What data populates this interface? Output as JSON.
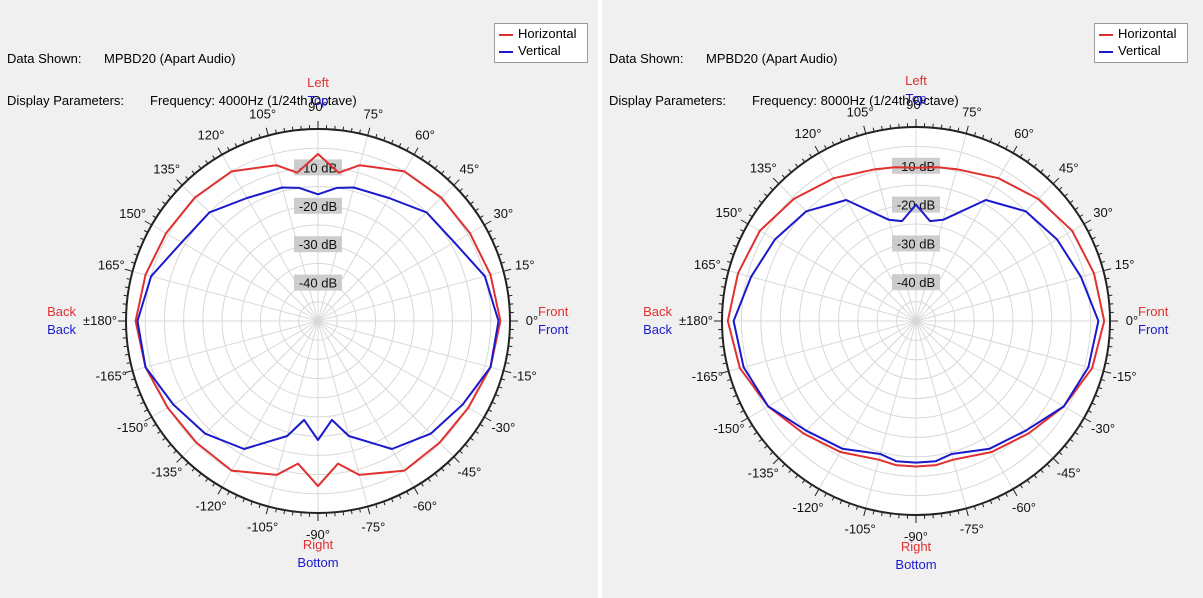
{
  "colors": {
    "horizontal": "#e03030",
    "vertical": "#1a1acc",
    "grid": "#d8d8d8",
    "plot_bg": "#ffffff",
    "db_label_bg": "#c8c8c8"
  },
  "chart_data": [
    {
      "type": "polar-line",
      "info": {
        "data_label": "Data Shown:",
        "data_value": "MPBD20 (Apart Audio)",
        "params_label": "Display Parameters:",
        "params_value": "Frequency: 4000Hz (1/24th Octave)"
      },
      "legend": [
        {
          "name": "Horizontal",
          "color": "#e03030"
        },
        {
          "name": "Vertical",
          "color": "#1a1acc"
        }
      ],
      "radial_axis": {
        "min_db": -50,
        "max_db": 0,
        "labels": [
          "-10 dB",
          "-20 dB",
          "-30 dB",
          "-40 dB"
        ],
        "label_values": [
          -10,
          -20,
          -30,
          -40
        ]
      },
      "angle_tick_labels": [
        "0°",
        "15°",
        "30°",
        "45°",
        "60°",
        "75°",
        "90°",
        "105°",
        "120°",
        "135°",
        "150°",
        "165°",
        "±180°",
        "-165°",
        "-150°",
        "-135°",
        "-120°",
        "-105°",
        "-90°",
        "-75°",
        "-60°",
        "-45°",
        "-30°",
        "-15°"
      ],
      "direction_labels": {
        "left": "Left",
        "top": "Top",
        "right": "Right",
        "bottom": "Bottom",
        "front_h": "Front",
        "front_v": "Front",
        "back_h": "Back",
        "back_v": "Back"
      },
      "angles": [
        0,
        15,
        30,
        45,
        60,
        75,
        82,
        90,
        98,
        105,
        120,
        135,
        150,
        165,
        180,
        -165,
        -150,
        -135,
        -120,
        -105,
        -98,
        -90,
        -82,
        -75,
        -60,
        -45,
        -30,
        -15
      ],
      "series": [
        {
          "name": "Horizontal",
          "values": [
            -2.5,
            -3.5,
            -4.3,
            -4.6,
            -5.0,
            -8.0,
            -11.0,
            -6.5,
            -11.0,
            -8.0,
            -5.0,
            -4.6,
            -4.3,
            -3.5,
            -2.5,
            -3.5,
            -4.8,
            -5.2,
            -5.0,
            -8.5,
            -12.5,
            -7.0,
            -12.5,
            -8.5,
            -5.0,
            -5.2,
            -4.8,
            -3.5
          ]
        },
        {
          "name": "Vertical",
          "values": [
            -3.0,
            -5.0,
            -9.0,
            -10.0,
            -13.0,
            -14.0,
            -15.0,
            -17.0,
            -15.0,
            -14.0,
            -13.0,
            -10.0,
            -9.0,
            -5.0,
            -3.0,
            -3.5,
            -6.5,
            -8.5,
            -11.5,
            -19.0,
            -24.0,
            -19.0,
            -24.0,
            -19.0,
            -11.5,
            -8.5,
            -6.5,
            -3.5
          ]
        }
      ]
    },
    {
      "type": "polar-line",
      "info": {
        "data_label": "Data Shown:",
        "data_value": "MPBD20 (Apart Audio)",
        "params_label": "Display Parameters:",
        "params_value": "Frequency: 8000Hz (1/24th Octave)"
      },
      "legend": [
        {
          "name": "Horizontal",
          "color": "#e03030"
        },
        {
          "name": "Vertical",
          "color": "#1a1acc"
        }
      ],
      "radial_axis": {
        "min_db": -50,
        "max_db": 0,
        "labels": [
          "-10 dB",
          "-20 dB",
          "-30 dB",
          "-40 dB"
        ],
        "label_values": [
          -10,
          -20,
          -30,
          -40
        ]
      },
      "angle_tick_labels": [
        "0°",
        "15°",
        "30°",
        "45°",
        "60°",
        "75°",
        "90°",
        "105°",
        "120°",
        "135°",
        "150°",
        "165°",
        "±180°",
        "-165°",
        "-150°",
        "-135°",
        "-120°",
        "-105°",
        "-90°",
        "-75°",
        "-60°",
        "-45°",
        "-30°",
        "-15°"
      ],
      "direction_labels": {
        "left": "Left",
        "top": "Top",
        "right": "Right",
        "bottom": "Bottom",
        "front_h": "Front",
        "front_v": "Front",
        "back_h": "Back",
        "back_v": "Back"
      },
      "angles": [
        0,
        15,
        30,
        45,
        60,
        75,
        82,
        90,
        98,
        105,
        120,
        135,
        150,
        165,
        180,
        -165,
        -150,
        -135,
        -120,
        -105,
        -98,
        -90,
        -82,
        -75,
        -60,
        -45,
        -30,
        -15
      ],
      "series": [
        {
          "name": "Horizontal",
          "values": [
            -1.5,
            -2.5,
            -3.5,
            -5.5,
            -7.5,
            -9.5,
            -10.0,
            -10.5,
            -10.0,
            -9.5,
            -7.5,
            -5.5,
            -3.5,
            -2.5,
            -1.5,
            -3.0,
            -6.0,
            -9.0,
            -11.0,
            -13.0,
            -12.5,
            -12.5,
            -12.5,
            -13.0,
            -11.0,
            -9.0,
            -6.0,
            -3.0
          ]
        },
        {
          "name": "Vertical",
          "values": [
            -3.0,
            -6.0,
            -8.0,
            -10.0,
            -14.0,
            -23.0,
            -24.0,
            -20.0,
            -24.0,
            -23.0,
            -14.0,
            -10.0,
            -8.0,
            -6.0,
            -3.0,
            -4.0,
            -6.0,
            -10.0,
            -12.0,
            -14.5,
            -13.5,
            -13.5,
            -13.5,
            -14.5,
            -12.0,
            -10.0,
            -6.0,
            -4.0
          ]
        }
      ]
    }
  ]
}
